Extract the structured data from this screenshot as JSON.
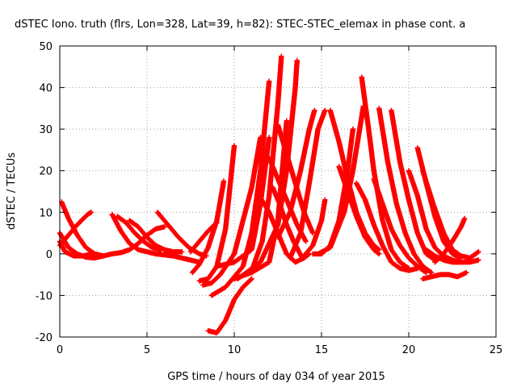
{
  "chart_data": {
    "type": "scatter",
    "title": "dSTEC Iono. truth (flrs, Lon=328, Lat=39, h=82): STEC-STEC_elemax in phase cont. a",
    "xlabel": "GPS time / hours of day 034 of year 2015",
    "ylabel": "dSTEC  / TECUs",
    "xlim": [
      0,
      25
    ],
    "ylim": [
      -20,
      50
    ],
    "xticks": [
      0,
      5,
      10,
      15,
      20,
      25
    ],
    "yticks": [
      -20,
      -10,
      0,
      10,
      20,
      30,
      40,
      50
    ],
    "grid": true,
    "marker": "+",
    "color": "#ff0000",
    "series": [
      {
        "x": [
          0.0,
          0.3,
          0.8,
          1.3,
          1.9
        ],
        "y": [
          3.0,
          0.5,
          -0.5,
          -0.5,
          0.0
        ]
      },
      {
        "x": [
          0.0,
          0.4,
          1.0,
          1.6,
          1.8
        ],
        "y": [
          2.0,
          4.0,
          7.0,
          9.5,
          10.0
        ]
      },
      {
        "x": [
          0.0,
          0.5,
          1.0,
          1.5,
          2.0,
          2.5
        ],
        "y": [
          5.0,
          1.5,
          0.0,
          -0.8,
          -1.0,
          -0.5
        ]
      },
      {
        "x": [
          0.1,
          0.5,
          1.0,
          1.5,
          2.0,
          2.5
        ],
        "y": [
          12.5,
          8.5,
          4.5,
          1.5,
          0.0,
          -0.5
        ]
      },
      {
        "x": [
          2.5,
          3.0,
          3.5,
          4.0,
          4.5,
          5.0,
          5.5,
          6.0
        ],
        "y": [
          -0.5,
          0.0,
          0.3,
          1.0,
          2.5,
          4.5,
          6.0,
          6.5
        ]
      },
      {
        "x": [
          3.0,
          3.5,
          4.0,
          4.5,
          5.0,
          5.5
        ],
        "y": [
          9.5,
          5.5,
          2.5,
          1.0,
          0.5,
          0.0
        ]
      },
      {
        "x": [
          3.3,
          3.8,
          4.3,
          4.8,
          5.3,
          5.8
        ],
        "y": [
          9.0,
          7.5,
          5.0,
          3.0,
          1.5,
          1.0
        ]
      },
      {
        "x": [
          4.0,
          4.5,
          5.0,
          5.5,
          6.0,
          6.5,
          7.0
        ],
        "y": [
          8.0,
          6.5,
          4.0,
          2.0,
          1.0,
          0.5,
          0.5
        ]
      },
      {
        "x": [
          5.6,
          6.2,
          6.8,
          7.4,
          8.0,
          8.4
        ],
        "y": [
          10.0,
          7.0,
          4.0,
          1.5,
          0.0,
          -0.5
        ]
      },
      {
        "x": [
          5.5,
          6.5,
          7.0,
          7.5,
          8.0
        ],
        "y": [
          0.0,
          -0.5,
          -1.0,
          -1.5,
          -2.0
        ]
      },
      {
        "x": [
          7.5,
          8.0,
          8.5,
          9.0
        ],
        "y": [
          0.5,
          3.0,
          5.5,
          7.5
        ]
      },
      {
        "x": [
          7.6,
          8.0,
          8.5,
          9.0,
          9.4
        ],
        "y": [
          -4.5,
          -2.5,
          1.5,
          8.0,
          17.5
        ]
      },
      {
        "x": [
          8.0,
          8.5,
          9.0,
          9.5,
          10.0
        ],
        "y": [
          -6.5,
          -6.0,
          -3.0,
          6.0,
          26.0
        ]
      },
      {
        "x": [
          8.2,
          8.7,
          9.2,
          10.0,
          11.0,
          11.5
        ],
        "y": [
          -7.5,
          -7.0,
          -5.0,
          0.0,
          16.0,
          28.0
        ]
      },
      {
        "x": [
          8.5,
          9.0,
          9.5,
          10.0,
          10.5,
          11.0
        ],
        "y": [
          -18.5,
          -19.0,
          -16.0,
          -11.0,
          -8.0,
          -6.0
        ]
      },
      {
        "x": [
          8.7,
          9.5,
          10.5,
          11.0,
          11.5,
          12.0
        ],
        "y": [
          -10.0,
          -8.0,
          -3.0,
          5.0,
          20.0,
          41.5
        ]
      },
      {
        "x": [
          9.0,
          10.0,
          11.0,
          11.5,
          12.0
        ],
        "y": [
          -3.0,
          -2.0,
          1.0,
          12.0,
          28.0
        ]
      },
      {
        "x": [
          10.0,
          11.0,
          12.0,
          12.5,
          13.0
        ],
        "y": [
          -6.0,
          -4.5,
          -2.0,
          8.0,
          32.0
        ]
      },
      {
        "x": [
          11.0,
          11.6,
          12.0,
          12.5,
          12.7
        ],
        "y": [
          -4.0,
          3.0,
          14.0,
          36.0,
          47.5
        ]
      },
      {
        "x": [
          10.2,
          11.5,
          12.5,
          13.0,
          13.5,
          13.6
        ],
        "y": [
          -6.0,
          -2.0,
          7.0,
          20.0,
          40.0,
          46.5
        ]
      },
      {
        "x": [
          11.5,
          12.0,
          12.5,
          13.0,
          13.5,
          14.0,
          14.3
        ],
        "y": [
          13.5,
          10.0,
          5.0,
          0.0,
          -2.0,
          -1.0,
          0.0
        ]
      },
      {
        "x": [
          12.2,
          12.6,
          13.0,
          13.4,
          13.9
        ],
        "y": [
          16.0,
          12.0,
          7.0,
          3.0,
          -1.0
        ]
      },
      {
        "x": [
          12.0,
          12.5,
          13.0,
          13.6,
          14.1
        ],
        "y": [
          23.0,
          18.0,
          13.0,
          7.0,
          3.0
        ]
      },
      {
        "x": [
          12.5,
          13.0,
          13.5,
          14.0,
          14.5
        ],
        "y": [
          31.0,
          24.0,
          17.0,
          10.0,
          5.0
        ]
      },
      {
        "x": [
          12.5,
          13.2,
          13.8,
          14.3,
          14.6
        ],
        "y": [
          4.0,
          10.0,
          20.0,
          30.0,
          34.5
        ]
      },
      {
        "x": [
          13.2,
          13.8,
          14.3,
          14.8,
          15.2
        ],
        "y": [
          -1.0,
          5.0,
          17.0,
          30.0,
          34.5
        ]
      },
      {
        "x": [
          14.0,
          14.5,
          15.0,
          15.2
        ],
        "y": [
          -0.5,
          2.0,
          8.0,
          13.0
        ]
      },
      {
        "x": [
          14.5,
          15.0,
          15.5,
          16.0,
          16.5,
          16.8
        ],
        "y": [
          0.0,
          0.0,
          2.0,
          8.0,
          20.0,
          30.0
        ]
      },
      {
        "x": [
          14.8,
          15.5,
          16.3,
          16.8,
          17.4
        ],
        "y": [
          0.0,
          1.5,
          10.0,
          20.0,
          35.5
        ]
      },
      {
        "x": [
          15.5,
          16.0,
          16.5,
          17.0,
          17.5,
          18.0,
          18.3
        ],
        "y": [
          34.5,
          27.0,
          18.0,
          10.0,
          5.0,
          2.0,
          1.0
        ]
      },
      {
        "x": [
          16.0,
          16.5,
          17.0,
          17.5,
          18.0,
          18.3
        ],
        "y": [
          21.0,
          15.0,
          9.0,
          4.0,
          1.0,
          0.0
        ]
      },
      {
        "x": [
          17.3,
          17.7,
          18.0,
          18.5,
          19.0,
          19.5,
          20.0
        ],
        "y": [
          42.5,
          30.0,
          20.0,
          8.0,
          1.0,
          -2.0,
          -3.5
        ]
      },
      {
        "x": [
          17.0,
          17.5,
          18.0,
          18.5,
          19.0,
          19.5,
          20.0,
          20.5
        ],
        "y": [
          17.0,
          13.0,
          7.0,
          2.0,
          -2.0,
          -3.5,
          -4.0,
          -3.5
        ]
      },
      {
        "x": [
          18.0,
          18.5,
          19.0,
          19.5,
          20.0,
          20.5,
          21.0
        ],
        "y": [
          18.0,
          12.0,
          6.0,
          2.0,
          -1.0,
          -3.0,
          -4.5
        ]
      },
      {
        "x": [
          18.3,
          18.8,
          19.3,
          19.8,
          20.3,
          20.8,
          21.3
        ],
        "y": [
          35.0,
          22.0,
          12.0,
          5.0,
          0.0,
          -3.0,
          -4.5
        ]
      },
      {
        "x": [
          19.0,
          19.5,
          20.0,
          20.5,
          21.0,
          21.5
        ],
        "y": [
          34.5,
          22.0,
          13.0,
          5.0,
          0.0,
          -1.5
        ]
      },
      {
        "x": [
          20.5,
          21.0,
          21.5,
          22.0,
          22.5,
          23.0
        ],
        "y": [
          25.5,
          17.0,
          9.0,
          3.0,
          0.0,
          -1.0
        ]
      },
      {
        "x": [
          20.0,
          20.5,
          21.0,
          21.5,
          22.0,
          22.5,
          23.0
        ],
        "y": [
          20.0,
          14.0,
          6.0,
          1.5,
          -0.5,
          -1.5,
          -2.0
        ]
      },
      {
        "x": [
          20.8,
          21.4,
          22.0,
          22.5,
          23.0,
          23.5,
          24.0
        ],
        "y": [
          20.0,
          12.0,
          5.0,
          1.0,
          -0.5,
          -1.0,
          0.5
        ]
      },
      {
        "x": [
          20.8,
          21.3,
          21.8,
          22.3,
          22.8,
          23.3
        ],
        "y": [
          -6.0,
          -5.5,
          -5.0,
          -5.0,
          -5.5,
          -4.5
        ]
      },
      {
        "x": [
          21.0,
          21.5,
          22.0,
          22.5,
          23.0,
          23.5,
          24.0
        ],
        "y": [
          1.0,
          -0.5,
          -1.5,
          -2.0,
          -2.0,
          -2.0,
          -1.5
        ]
      },
      {
        "x": [
          21.5,
          22.0,
          22.5,
          23.0,
          23.2
        ],
        "y": [
          -2.0,
          0.0,
          3.0,
          6.5,
          8.5
        ]
      }
    ]
  }
}
